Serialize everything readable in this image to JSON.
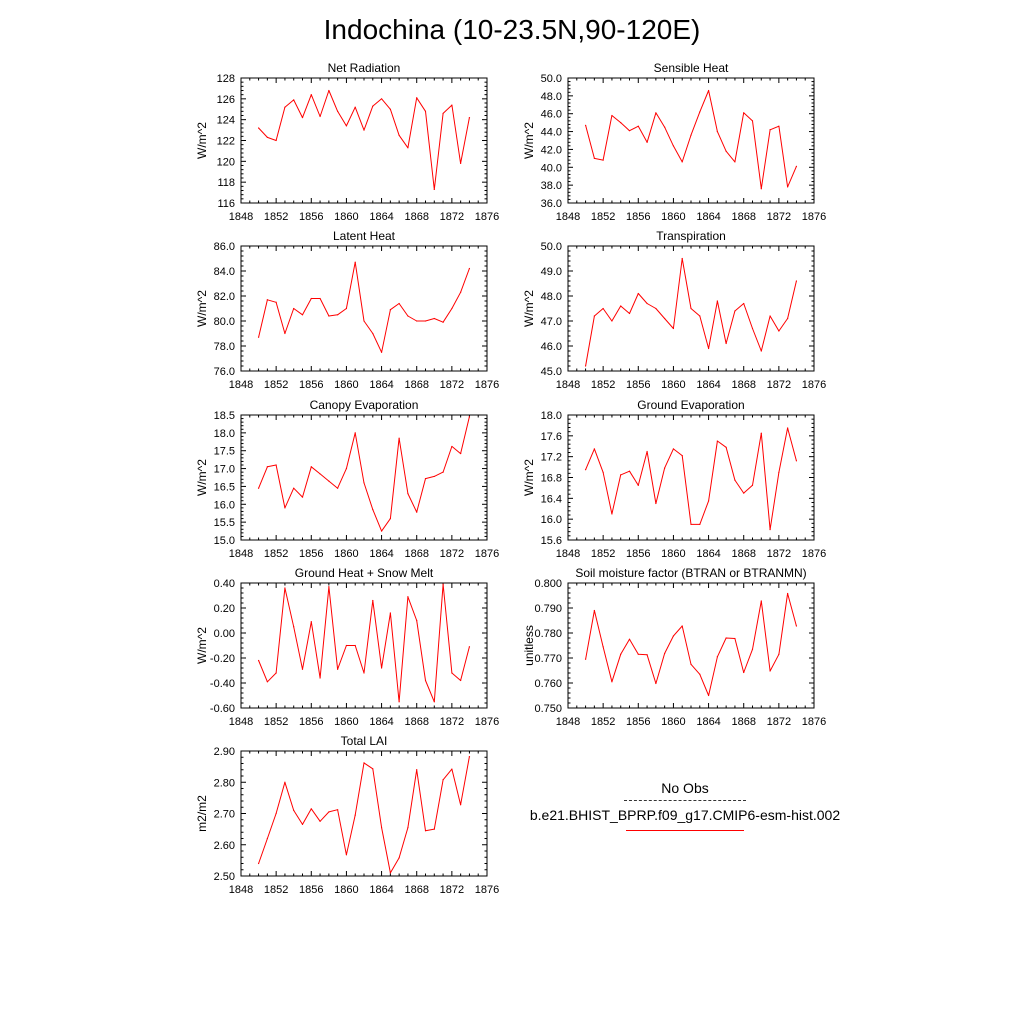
{
  "title": "Indochina (10-23.5N,90-120E)",
  "line_color": "#ff0000",
  "legend": {
    "obs_label": "No Obs",
    "model_label": "b.e21.BHIST_BPRP.f09_g17.CMIP6-esm-hist.002"
  },
  "chart_data": [
    {
      "type": "line",
      "title": "Net Radiation",
      "ylabel": "W/m^2",
      "xlim": [
        1848,
        1876
      ],
      "ylim": [
        116,
        128
      ],
      "xticks": [
        1848,
        1852,
        1856,
        1860,
        1864,
        1868,
        1872,
        1876
      ],
      "yticks": [
        "116",
        "118",
        "120",
        "122",
        "124",
        "126",
        "128"
      ],
      "x": [
        1850,
        1851,
        1852,
        1853,
        1854,
        1855,
        1856,
        1857,
        1858,
        1859,
        1860,
        1861,
        1862,
        1863,
        1864,
        1865,
        1866,
        1867,
        1868,
        1869,
        1870,
        1871,
        1872,
        1873,
        1874
      ],
      "values": [
        123.2,
        122.3,
        122.0,
        125.2,
        125.9,
        124.2,
        126.4,
        124.3,
        126.8,
        124.8,
        123.4,
        125.2,
        123.0,
        125.3,
        126.0,
        125.0,
        122.5,
        121.3,
        126.1,
        124.8,
        117.3,
        124.6,
        125.4,
        119.8,
        124.2
      ]
    },
    {
      "type": "line",
      "title": "Sensible Heat",
      "ylabel": "W/m^2",
      "xlim": [
        1848,
        1876
      ],
      "ylim": [
        36.0,
        50.0
      ],
      "xticks": [
        1848,
        1852,
        1856,
        1860,
        1864,
        1868,
        1872,
        1876
      ],
      "yticks": [
        "36.0",
        "38.0",
        "40.0",
        "42.0",
        "44.0",
        "46.0",
        "48.0",
        "50.0"
      ],
      "x": [
        1850,
        1851,
        1852,
        1853,
        1854,
        1855,
        1856,
        1857,
        1858,
        1859,
        1860,
        1861,
        1862,
        1863,
        1864,
        1865,
        1866,
        1867,
        1868,
        1869,
        1870,
        1871,
        1872,
        1873,
        1874
      ],
      "values": [
        44.7,
        41.0,
        40.8,
        45.8,
        45.0,
        44.1,
        44.6,
        42.8,
        46.1,
        44.5,
        42.4,
        40.6,
        43.6,
        46.2,
        48.6,
        44.0,
        41.8,
        40.6,
        46.1,
        45.2,
        37.6,
        44.2,
        44.6,
        37.8,
        40.1
      ]
    },
    {
      "type": "line",
      "title": "Latent Heat",
      "ylabel": "W/m^2",
      "xlim": [
        1848,
        1876
      ],
      "ylim": [
        76.0,
        86.0
      ],
      "xticks": [
        1848,
        1852,
        1856,
        1860,
        1864,
        1868,
        1872,
        1876
      ],
      "yticks": [
        "76.0",
        "78.0",
        "80.0",
        "82.0",
        "84.0",
        "86.0"
      ],
      "x": [
        1850,
        1851,
        1852,
        1853,
        1854,
        1855,
        1856,
        1857,
        1858,
        1859,
        1860,
        1861,
        1862,
        1863,
        1864,
        1865,
        1866,
        1867,
        1868,
        1869,
        1870,
        1871,
        1872,
        1873,
        1874
      ],
      "values": [
        78.7,
        81.7,
        81.5,
        79.0,
        81.0,
        80.5,
        81.8,
        81.8,
        80.4,
        80.5,
        81.0,
        84.7,
        80.0,
        79.0,
        77.5,
        80.9,
        81.4,
        80.4,
        80.0,
        80.0,
        80.2,
        79.9,
        81.0,
        82.3,
        84.2
      ]
    },
    {
      "type": "line",
      "title": "Transpiration",
      "ylabel": "W/m^2",
      "xlim": [
        1848,
        1876
      ],
      "ylim": [
        45.0,
        50.0
      ],
      "xticks": [
        1848,
        1852,
        1856,
        1860,
        1864,
        1868,
        1872,
        1876
      ],
      "yticks": [
        "45.0",
        "46.0",
        "47.0",
        "48.0",
        "49.0",
        "50.0"
      ],
      "x": [
        1850,
        1851,
        1852,
        1853,
        1854,
        1855,
        1856,
        1857,
        1858,
        1859,
        1860,
        1861,
        1862,
        1863,
        1864,
        1865,
        1866,
        1867,
        1868,
        1869,
        1870,
        1871,
        1872,
        1873,
        1874
      ],
      "values": [
        45.2,
        47.2,
        47.5,
        47.0,
        47.6,
        47.3,
        48.1,
        47.7,
        47.5,
        47.1,
        46.7,
        49.5,
        47.5,
        47.2,
        45.9,
        47.8,
        46.1,
        47.4,
        47.7,
        46.7,
        45.8,
        47.2,
        46.6,
        47.1,
        48.6
      ]
    },
    {
      "type": "line",
      "title": "Canopy Evaporation",
      "ylabel": "W/m^2",
      "xlim": [
        1848,
        1876
      ],
      "ylim": [
        15.0,
        18.5
      ],
      "xticks": [
        1848,
        1852,
        1856,
        1860,
        1864,
        1868,
        1872,
        1876
      ],
      "yticks": [
        "15.0",
        "15.5",
        "16.0",
        "16.5",
        "17.0",
        "17.5",
        "18.0",
        "18.5"
      ],
      "x": [
        1850,
        1851,
        1852,
        1853,
        1854,
        1855,
        1856,
        1857,
        1858,
        1859,
        1860,
        1861,
        1862,
        1863,
        1864,
        1865,
        1866,
        1867,
        1868,
        1869,
        1870,
        1871,
        1872,
        1873,
        1874
      ],
      "values": [
        16.45,
        17.05,
        17.1,
        15.9,
        16.45,
        16.2,
        17.05,
        16.85,
        16.65,
        16.45,
        17.0,
        18.0,
        16.6,
        15.85,
        15.25,
        15.6,
        17.85,
        16.3,
        15.78,
        16.72,
        16.78,
        16.9,
        17.62,
        17.42,
        18.45
      ]
    },
    {
      "type": "line",
      "title": "Ground Evaporation",
      "ylabel": "W/m^2",
      "xlim": [
        1848,
        1876
      ],
      "ylim": [
        15.6,
        18.0
      ],
      "xticks": [
        1848,
        1852,
        1856,
        1860,
        1864,
        1868,
        1872,
        1876
      ],
      "yticks": [
        "15.6",
        "16.0",
        "16.4",
        "16.8",
        "17.2",
        "17.6",
        "18.0"
      ],
      "x": [
        1850,
        1851,
        1852,
        1853,
        1854,
        1855,
        1856,
        1857,
        1858,
        1859,
        1860,
        1861,
        1862,
        1863,
        1864,
        1865,
        1866,
        1867,
        1868,
        1869,
        1870,
        1871,
        1872,
        1873,
        1874
      ],
      "values": [
        16.95,
        17.35,
        16.9,
        16.1,
        16.85,
        16.92,
        16.65,
        17.3,
        16.3,
        16.98,
        17.35,
        17.22,
        15.9,
        15.9,
        16.35,
        17.5,
        17.38,
        16.75,
        16.5,
        16.65,
        17.65,
        15.8,
        16.9,
        17.75,
        17.12
      ]
    },
    {
      "type": "line",
      "title": "Ground Heat + Snow Melt",
      "ylabel": "W/m^2",
      "xlim": [
        1848,
        1876
      ],
      "ylim": [
        -0.6,
        0.4
      ],
      "xticks": [
        1848,
        1852,
        1856,
        1860,
        1864,
        1868,
        1872,
        1876
      ],
      "yticks": [
        "-0.60",
        "-0.40",
        "-0.20",
        "0.00",
        "0.20",
        "0.40"
      ],
      "x": [
        1850,
        1851,
        1852,
        1853,
        1854,
        1855,
        1856,
        1857,
        1858,
        1859,
        1860,
        1861,
        1862,
        1863,
        1864,
        1865,
        1866,
        1867,
        1868,
        1869,
        1870,
        1871,
        1872,
        1873,
        1874
      ],
      "values": [
        -0.22,
        -0.39,
        -0.32,
        0.36,
        0.05,
        -0.29,
        0.09,
        -0.36,
        0.37,
        -0.29,
        -0.1,
        -0.1,
        -0.32,
        0.26,
        -0.28,
        0.16,
        -0.55,
        0.29,
        0.1,
        -0.38,
        -0.55,
        0.39,
        -0.32,
        -0.38,
        -0.11
      ]
    },
    {
      "type": "line",
      "title": "Soil moisture factor (BTRAN or BTRANMN)",
      "ylabel": "unitless",
      "xlim": [
        1848,
        1876
      ],
      "ylim": [
        0.75,
        0.8
      ],
      "xticks": [
        1848,
        1852,
        1856,
        1860,
        1864,
        1868,
        1872,
        1876
      ],
      "yticks": [
        "0.750",
        "0.760",
        "0.770",
        "0.780",
        "0.790",
        "0.800"
      ],
      "x": [
        1850,
        1851,
        1852,
        1853,
        1854,
        1855,
        1856,
        1857,
        1858,
        1859,
        1860,
        1861,
        1862,
        1863,
        1864,
        1865,
        1866,
        1867,
        1868,
        1869,
        1870,
        1871,
        1872,
        1873,
        1874
      ],
      "values": [
        0.7695,
        0.789,
        0.7745,
        0.7605,
        0.7715,
        0.7775,
        0.7715,
        0.7713,
        0.7598,
        0.7718,
        0.7788,
        0.7828,
        0.7675,
        0.7635,
        0.755,
        0.7705,
        0.778,
        0.7778,
        0.7642,
        0.7735,
        0.7928,
        0.7648,
        0.7715,
        0.7958,
        0.7828
      ]
    },
    {
      "type": "line",
      "title": "Total LAI",
      "ylabel": "m2/m2",
      "xlim": [
        1848,
        1876
      ],
      "ylim": [
        2.5,
        2.9
      ],
      "xticks": [
        1848,
        1852,
        1856,
        1860,
        1864,
        1868,
        1872,
        1876
      ],
      "yticks": [
        "2.50",
        "2.60",
        "2.70",
        "2.80",
        "2.90"
      ],
      "x": [
        1850,
        1851,
        1852,
        1853,
        1854,
        1855,
        1856,
        1857,
        1858,
        1859,
        1860,
        1861,
        1862,
        1863,
        1864,
        1865,
        1866,
        1867,
        1868,
        1869,
        1870,
        1871,
        1872,
        1873,
        1874
      ],
      "values": [
        2.54,
        2.62,
        2.7,
        2.8,
        2.71,
        2.665,
        2.715,
        2.675,
        2.705,
        2.712,
        2.568,
        2.695,
        2.862,
        2.843,
        2.655,
        2.51,
        2.558,
        2.655,
        2.84,
        2.645,
        2.65,
        2.808,
        2.842,
        2.728,
        2.882
      ]
    }
  ]
}
